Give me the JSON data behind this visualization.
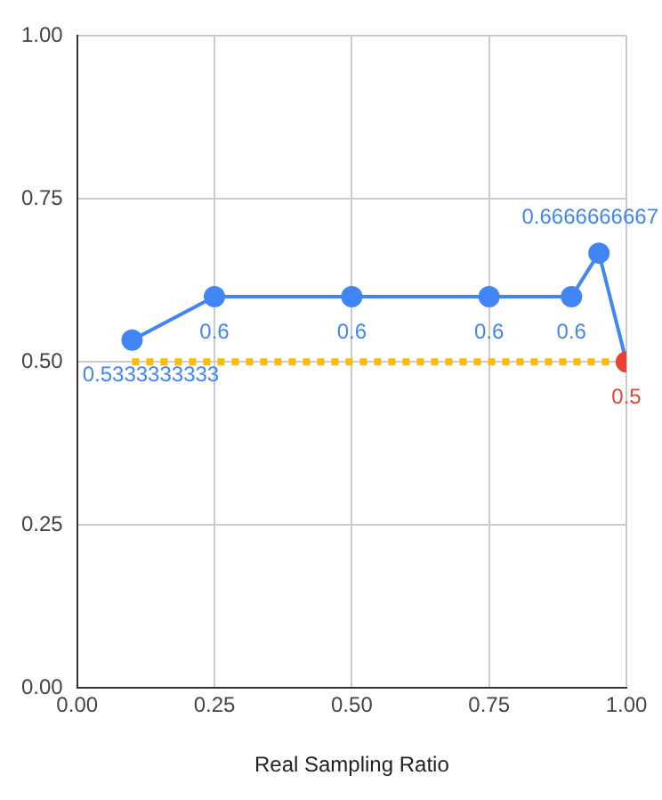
{
  "chart_data": {
    "type": "line",
    "xlabel": "Real Sampling Ratio",
    "xlim": [
      0,
      1
    ],
    "ylim": [
      0,
      1
    ],
    "xticks": [
      {
        "value": 0,
        "label": "0.00"
      },
      {
        "value": 0.25,
        "label": "0.25"
      },
      {
        "value": 0.5,
        "label": "0.50"
      },
      {
        "value": 0.75,
        "label": "0.75"
      },
      {
        "value": 1,
        "label": "1.00"
      }
    ],
    "yticks": [
      {
        "value": 0,
        "label": "0.00"
      },
      {
        "value": 0.25,
        "label": "0.25"
      },
      {
        "value": 0.5,
        "label": "0.50"
      },
      {
        "value": 0.75,
        "label": "0.75"
      },
      {
        "value": 1,
        "label": "1.00"
      }
    ],
    "grid": true,
    "legend": false,
    "series": [
      {
        "color": "#4285f4",
        "x": [
          0.1,
          0.25,
          0.5,
          0.75,
          0.9,
          0.95,
          1
        ],
        "values": [
          0.5333333333,
          0.6,
          0.6,
          0.6,
          0.6,
          0.6666666667,
          0.5
        ],
        "colors": [
          "#4285f4",
          "#4285f4",
          "#4285f4",
          "#4285f4",
          "#4285f4",
          "#4285f4",
          "#ea4335"
        ],
        "value_labels": [
          "0.5333333333",
          "0.6",
          "0.6",
          "0.6",
          "0.6",
          "0.6666666667",
          "0.5"
        ],
        "marker": "circle",
        "line_style": "solid"
      },
      {
        "color": "#fbbc04",
        "x": [
          0.1,
          1
        ],
        "values": [
          0.5,
          0.5
        ],
        "marker": "none",
        "line_style": "dotted"
      }
    ]
  }
}
